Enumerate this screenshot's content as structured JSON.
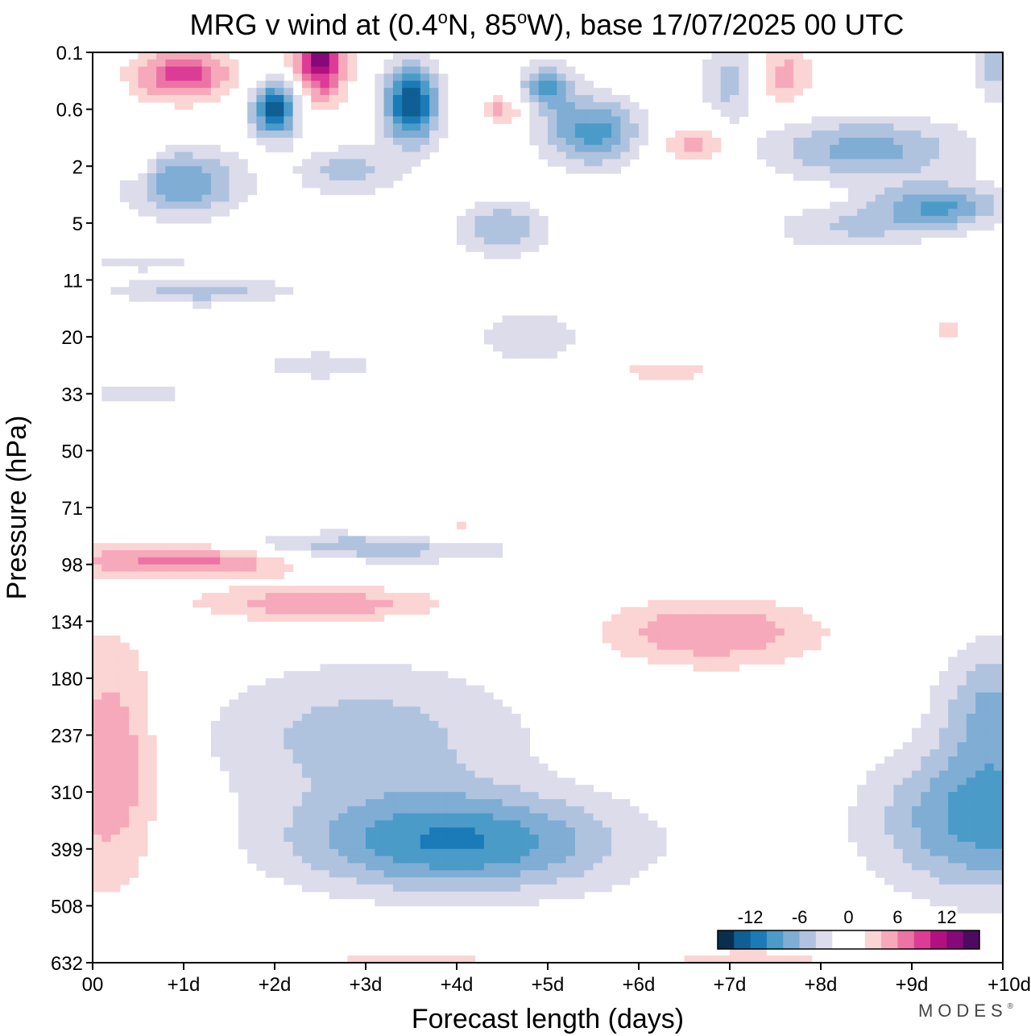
{
  "chart_data": {
    "type": "heatmap",
    "title": {
      "prefix": "MRG v wind at (0.4",
      "deg1": "o",
      "mid": "N, 85",
      "deg2": "o",
      "suffix": "W),  base 17/07/2025  00 UTC"
    },
    "xlabel": "Forecast length (days)",
    "ylabel": "Pressure (hPa)",
    "x_ticks": [
      "00",
      "+1d",
      "+2d",
      "+3d",
      "+4d",
      "+5d",
      "+6d",
      "+7d",
      "+8d",
      "+9d",
      "+10d"
    ],
    "x_range_days": [
      0,
      10
    ],
    "y_ticks": [
      "0.1",
      "0.6",
      "2",
      "5",
      "11",
      "20",
      "33",
      "50",
      "71",
      "98",
      "134",
      "180",
      "237",
      "310",
      "399",
      "508",
      "632"
    ],
    "colorbar": {
      "levels": [
        -14,
        -12,
        -10,
        -8,
        -6,
        -4,
        -2,
        0,
        2,
        4,
        6,
        8,
        10,
        12,
        14
      ],
      "labels": [
        "-12",
        "-6",
        "0",
        "6",
        "12"
      ],
      "label_values": [
        -12,
        -6,
        0,
        6,
        12
      ],
      "colors": [
        "#08304e",
        "#0f5f94",
        "#1b7ab8",
        "#4a9bc8",
        "#7fadd4",
        "#b0c3de",
        "#dcdceb",
        "#ffffff",
        "#ffffff",
        "#fbd4d4",
        "#f6a9bb",
        "#ec74a4",
        "#dd3c96",
        "#b1107e",
        "#850978",
        "#4d0a60"
      ]
    },
    "anomaly_blobs": [
      {
        "day": 2.0,
        "p_idx": 1.0,
        "v": -13,
        "rd": 0.25,
        "rp": 0.5
      },
      {
        "day": 3.5,
        "p_idx": 0.9,
        "v": -14,
        "rd": 0.3,
        "rp": 0.7
      },
      {
        "day": 2.5,
        "p_idx": 0.1,
        "v": 13,
        "rd": 0.28,
        "rp": 0.7
      },
      {
        "day": 1.0,
        "p_idx": 0.4,
        "v": 9,
        "rd": 0.55,
        "rp": 0.45
      },
      {
        "day": 1.0,
        "p_idx": 2.3,
        "v": -8,
        "rd": 0.65,
        "rp": 0.6
      },
      {
        "day": 2.8,
        "p_idx": 2.1,
        "v": -5,
        "rd": 0.55,
        "rp": 0.45
      },
      {
        "day": 5.5,
        "p_idx": 1.4,
        "v": -9,
        "rd": 0.55,
        "rp": 0.6
      },
      {
        "day": 5.0,
        "p_idx": 0.6,
        "v": -8,
        "rd": 0.3,
        "rp": 0.4
      },
      {
        "day": 4.5,
        "p_idx": 3.1,
        "v": -6,
        "rd": 0.5,
        "rp": 0.5
      },
      {
        "day": 8.5,
        "p_idx": 1.7,
        "v": -7,
        "rd": 1.1,
        "rp": 0.55
      },
      {
        "day": 9.3,
        "p_idx": 2.7,
        "v": -8,
        "rd": 0.7,
        "rp": 0.4
      },
      {
        "day": 8.3,
        "p_idx": 3.1,
        "v": -4,
        "rd": 0.9,
        "rp": 0.4
      },
      {
        "day": 7.0,
        "p_idx": 0.5,
        "v": -5,
        "rd": 0.3,
        "rp": 0.7
      },
      {
        "day": 9.9,
        "p_idx": 0.3,
        "v": -5,
        "rd": 0.2,
        "rp": 0.6
      },
      {
        "day": 6.6,
        "p_idx": 1.6,
        "v": 5,
        "rd": 0.4,
        "rp": 0.35
      },
      {
        "day": 7.6,
        "p_idx": 0.4,
        "v": 5,
        "rd": 0.3,
        "rp": 0.5
      },
      {
        "day": 4.5,
        "p_idx": 1.0,
        "v": 5,
        "rd": 0.25,
        "rp": 0.25
      },
      {
        "day": 0.5,
        "p_idx": 1.8,
        "v": 3,
        "rd": 0.2,
        "rp": 0.6
      },
      {
        "day": 1.2,
        "p_idx": 4.2,
        "v": -5,
        "rd": 1.0,
        "rp": 0.25
      },
      {
        "day": 0.5,
        "p_idx": 3.7,
        "v": -3,
        "rd": 0.7,
        "rp": 0.15
      },
      {
        "day": 2.5,
        "p_idx": 5.5,
        "v": -3,
        "rd": 0.8,
        "rp": 0.3
      },
      {
        "day": 4.8,
        "p_idx": 5.0,
        "v": -4,
        "rd": 0.6,
        "rp": 0.45
      },
      {
        "day": 0.5,
        "p_idx": 6.0,
        "v": -3,
        "rd": 0.7,
        "rp": 0.2
      },
      {
        "day": 6.3,
        "p_idx": 5.6,
        "v": 3,
        "rd": 0.6,
        "rp": 0.25
      },
      {
        "day": 9.4,
        "p_idx": 4.9,
        "v": 3,
        "rd": 0.2,
        "rp": 0.2
      },
      {
        "day": 2.8,
        "p_idx": 8.7,
        "v": -6,
        "rd": 1.8,
        "rp": 0.28
      },
      {
        "day": 1.1,
        "p_idx": 8.9,
        "v": 8,
        "rd": 1.3,
        "rp": 0.32
      },
      {
        "day": 2.5,
        "p_idx": 9.7,
        "v": 6,
        "rd": 1.3,
        "rp": 0.3
      },
      {
        "day": 4.0,
        "p_idx": 8.4,
        "v": 3,
        "rd": 0.8,
        "rp": 0.22
      },
      {
        "day": 6.8,
        "p_idx": 10.2,
        "v": 6,
        "rd": 1.2,
        "rp": 0.6
      },
      {
        "day": 4.0,
        "p_idx": 13.9,
        "v": -10,
        "rd": 1.8,
        "rp": 0.9
      },
      {
        "day": 3.0,
        "p_idx": 12.0,
        "v": -5,
        "rd": 1.8,
        "rp": 1.3
      },
      {
        "day": 9.8,
        "p_idx": 13.5,
        "v": -9,
        "rd": 1.2,
        "rp": 1.3
      },
      {
        "day": 9.9,
        "p_idx": 11.5,
        "v": -6,
        "rd": 0.6,
        "rp": 1.2
      },
      {
        "day": 0.2,
        "p_idx": 12.5,
        "v": 6,
        "rd": 0.55,
        "rp": 2.2
      },
      {
        "day": 3.5,
        "p_idx": 16.4,
        "v": 4,
        "rd": 1.4,
        "rp": 0.7
      },
      {
        "day": 7.2,
        "p_idx": 16.3,
        "v": 4,
        "rd": 1.2,
        "rp": 0.6
      }
    ]
  },
  "brand": {
    "name": "MODES",
    "mark": "®"
  }
}
